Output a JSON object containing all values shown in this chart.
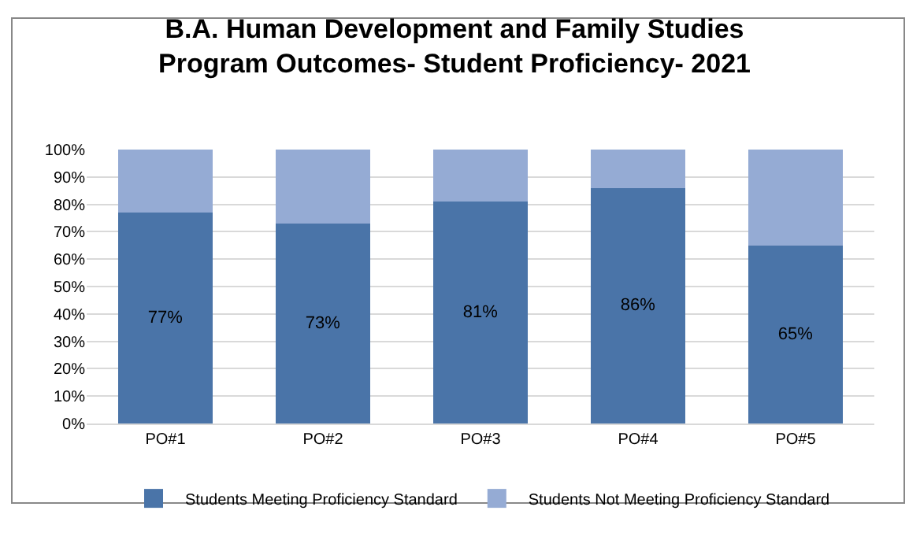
{
  "chart_data": {
    "type": "bar",
    "stacked": true,
    "title": "B.A. Human Development and Family Studies\nProgram Outcomes- Student Proficiency- 2021",
    "categories": [
      "PO#1",
      "PO#2",
      "PO#3",
      "PO#4",
      "PO#5"
    ],
    "series": [
      {
        "name": "Students Meeting Proficiency Standard",
        "color": "#4a74a8",
        "values": [
          77,
          73,
          81,
          86,
          65
        ],
        "value_labels": [
          "77%",
          "73%",
          "81%",
          "86%",
          "65%"
        ]
      },
      {
        "name": "Students Not Meeting Proficiency Standard",
        "color": "#95abd4",
        "values": [
          23,
          27,
          19,
          14,
          35
        ]
      }
    ],
    "ylim": [
      0,
      100
    ],
    "yticks": [
      {
        "value": 0,
        "label": "0%"
      },
      {
        "value": 10,
        "label": "10%"
      },
      {
        "value": 20,
        "label": "20%"
      },
      {
        "value": 30,
        "label": "30%"
      },
      {
        "value": 40,
        "label": "40%"
      },
      {
        "value": 50,
        "label": "50%"
      },
      {
        "value": 60,
        "label": "60%"
      },
      {
        "value": 70,
        "label": "70%"
      },
      {
        "value": 80,
        "label": "80%"
      },
      {
        "value": 90,
        "label": "90%"
      },
      {
        "value": 100,
        "label": "100%"
      }
    ],
    "grid": "y",
    "legend": "bottom"
  }
}
